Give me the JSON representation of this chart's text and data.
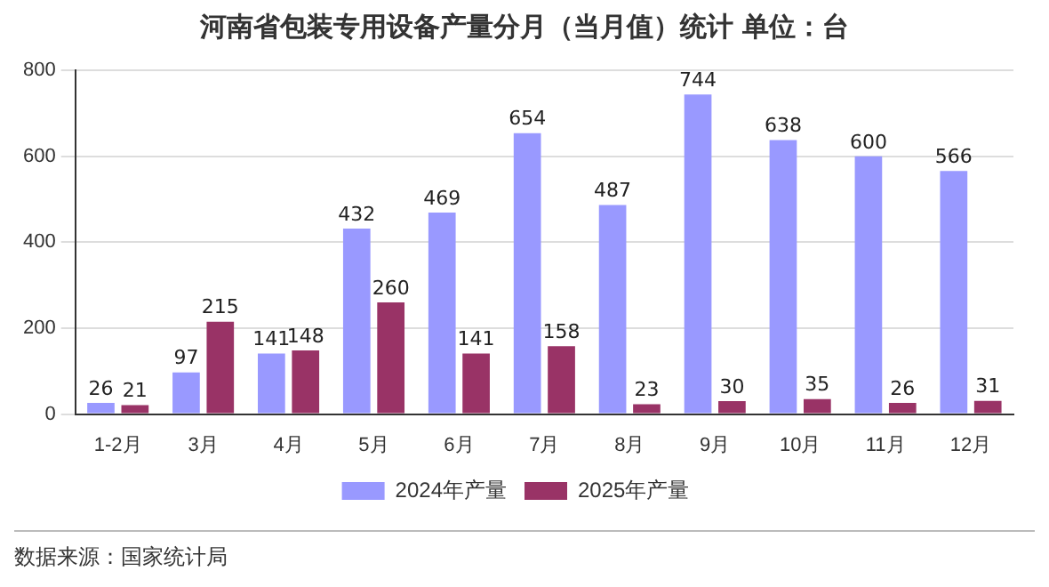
{
  "chart_data": {
    "type": "bar",
    "title": "河南省包装专用设备产量分月（当月值）统计  单位：台",
    "categories": [
      "1-2月",
      "3月",
      "4月",
      "5月",
      "6月",
      "7月",
      "8月",
      "9月",
      "10月",
      "11月",
      "12月"
    ],
    "series": [
      {
        "name": "2024年产量",
        "color": "#9999ff",
        "values": [
          26,
          97,
          141,
          432,
          469,
          654,
          487,
          744,
          638,
          600,
          566
        ]
      },
      {
        "name": "2025年产量",
        "color": "#993366",
        "values": [
          21,
          215,
          148,
          260,
          141,
          158,
          23,
          30,
          35,
          26,
          31
        ]
      }
    ],
    "ylim": [
      0,
      800
    ],
    "yticks": [
      0,
      200,
      400,
      600,
      800
    ],
    "grid": "y",
    "legend": "bottom",
    "data_labels": true,
    "annotations": [
      "数据来源：国家统计局"
    ]
  }
}
